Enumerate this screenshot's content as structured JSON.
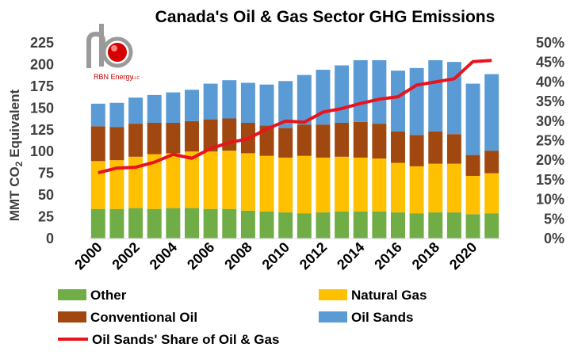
{
  "chart_data": {
    "type": "bar",
    "subtype": "stacked-bar-with-line",
    "title": "Canada's Oil & Gas Sector GHG Emissions",
    "ylabel_left": "MMT CO2 Equivalent",
    "ylabel_main": "MMT CO",
    "ylabel_sub": "2",
    "ylabel_tail": " Equivalent",
    "ylabel_right": "",
    "xlabel": "",
    "ylim_left": [
      0,
      225
    ],
    "yticks_left": [
      "0",
      "25",
      "50",
      "75",
      "100",
      "125",
      "150",
      "175",
      "200",
      "225"
    ],
    "ylim_right": [
      0,
      50
    ],
    "yticks_right": [
      "0%",
      "5%",
      "10%",
      "15%",
      "20%",
      "25%",
      "30%",
      "35%",
      "40%",
      "45%",
      "50%"
    ],
    "categories": [
      "2000",
      "2001",
      "2002",
      "2003",
      "2004",
      "2005",
      "2006",
      "2007",
      "2008",
      "2009",
      "2010",
      "2011",
      "2012",
      "2013",
      "2014",
      "2015",
      "2016",
      "2017",
      "2018",
      "2019",
      "2020",
      "2021"
    ],
    "xtick_labels": [
      "2000",
      "2002",
      "2004",
      "2006",
      "2008",
      "2010",
      "2012",
      "2014",
      "2016",
      "2018",
      "2020"
    ],
    "series": [
      {
        "name": "Other",
        "color": "#70ad47",
        "values": [
          34,
          34,
          35,
          34,
          35,
          35,
          34,
          34,
          32,
          31,
          30,
          29,
          30,
          31,
          31,
          31,
          30,
          29,
          30,
          30,
          28,
          29
        ]
      },
      {
        "name": "Natural Gas",
        "color": "#ffc000",
        "values": [
          55,
          56,
          59,
          63,
          63,
          65,
          66,
          67,
          66,
          64,
          63,
          66,
          63,
          63,
          62,
          61,
          57,
          54,
          56,
          56,
          44,
          46
        ]
      },
      {
        "name": "Conventional Oil",
        "color": "#a0480f",
        "values": [
          40,
          38,
          38,
          36,
          35,
          35,
          37,
          37,
          35,
          35,
          34,
          36,
          38,
          39,
          41,
          40,
          36,
          36,
          37,
          34,
          24,
          26
        ]
      },
      {
        "name": "Oil Sands",
        "color": "#5b9bd5",
        "values": [
          26,
          28,
          30,
          32,
          35,
          36,
          41,
          44,
          46,
          47,
          54,
          57,
          63,
          66,
          71,
          73,
          70,
          77,
          82,
          83,
          82,
          88
        ]
      },
      {
        "name": "Oil Sands' Share of Oil & Gas",
        "type": "line",
        "axis": "right",
        "color": "#e8141c",
        "values": [
          16.8,
          18.0,
          18.2,
          19.5,
          21.5,
          20.5,
          23.0,
          24.5,
          25.5,
          28.0,
          30.0,
          29.7,
          32.3,
          33.2,
          34.5,
          35.6,
          36.2,
          39.2,
          40.0,
          40.8,
          45.2,
          45.5
        ]
      }
    ],
    "legend": [
      {
        "label": "Other",
        "color": "#70ad47",
        "kind": "box"
      },
      {
        "label": "Natural Gas",
        "color": "#ffc000",
        "kind": "box"
      },
      {
        "label": "Conventional Oil",
        "color": "#a0480f",
        "kind": "box"
      },
      {
        "label": "Oil Sands",
        "color": "#5b9bd5",
        "kind": "box"
      },
      {
        "label": "Oil Sands' Share of Oil & Gas",
        "color": "#e8141c",
        "kind": "line"
      }
    ],
    "legend_position": "bottom",
    "grid": false
  },
  "logo": {
    "text_main": "RBN Energy",
    "text_suffix": "LLC"
  }
}
